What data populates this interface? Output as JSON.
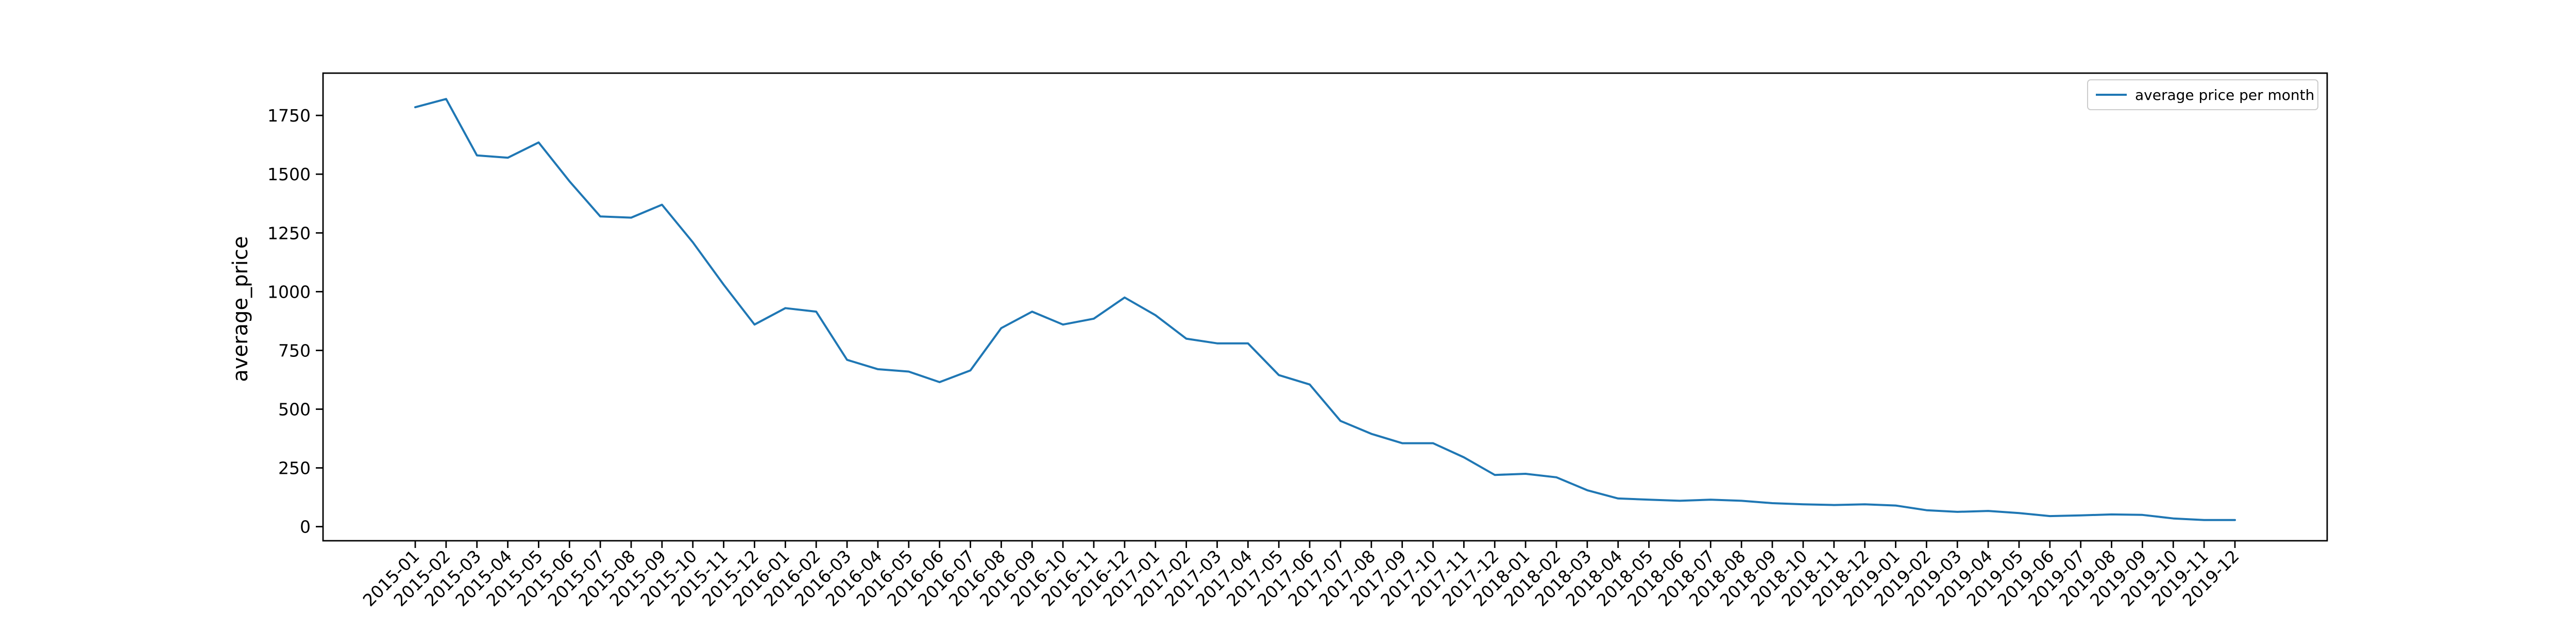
{
  "chart_data": {
    "type": "line",
    "title": "",
    "xlabel": "",
    "ylabel": "average_price",
    "ylim": [
      -60,
      1930
    ],
    "yticks": [
      0,
      250,
      500,
      750,
      1000,
      1250,
      1500,
      1750
    ],
    "grid": false,
    "legend_position": "top-right",
    "x": [
      "2015-01",
      "2015-02",
      "2015-03",
      "2015-04",
      "2015-05",
      "2015-06",
      "2015-07",
      "2015-08",
      "2015-09",
      "2015-10",
      "2015-11",
      "2015-12",
      "2016-01",
      "2016-02",
      "2016-03",
      "2016-04",
      "2016-05",
      "2016-06",
      "2016-07",
      "2016-08",
      "2016-09",
      "2016-10",
      "2016-11",
      "2016-12",
      "2017-01",
      "2017-02",
      "2017-03",
      "2017-04",
      "2017-05",
      "2017-06",
      "2017-07",
      "2017-08",
      "2017-09",
      "2017-10",
      "2017-11",
      "2017-12",
      "2018-01",
      "2018-02",
      "2018-03",
      "2018-04",
      "2018-05",
      "2018-06",
      "2018-07",
      "2018-08",
      "2018-09",
      "2018-10",
      "2018-11",
      "2018-12",
      "2019-01",
      "2019-02",
      "2019-03",
      "2019-04",
      "2019-05",
      "2019-06",
      "2019-07",
      "2019-08",
      "2019-09",
      "2019-10",
      "2019-11",
      "2019-12"
    ],
    "series": [
      {
        "name": "average price per month",
        "color": "#1f77b4",
        "values": [
          1785,
          1820,
          1580,
          1570,
          1635,
          1470,
          1320,
          1315,
          1370,
          1210,
          1030,
          860,
          930,
          915,
          710,
          670,
          660,
          615,
          665,
          845,
          915,
          860,
          885,
          975,
          900,
          800,
          780,
          780,
          645,
          605,
          450,
          395,
          355,
          355,
          295,
          220,
          225,
          210,
          155,
          120,
          115,
          110,
          115,
          110,
          100,
          95,
          92,
          95,
          90,
          70,
          63,
          67,
          58,
          45,
          48,
          52,
          50,
          35,
          28,
          28
        ]
      }
    ]
  }
}
